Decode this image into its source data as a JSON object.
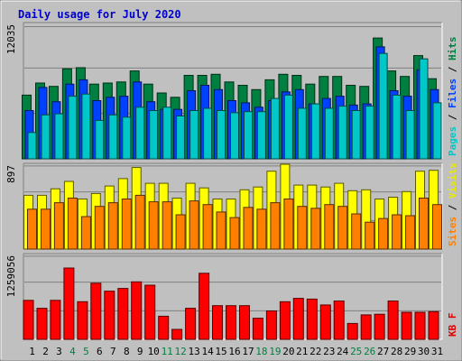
{
  "chart_data": {
    "type": "bar",
    "title": "Daily usage for July 2020",
    "categories": [
      "1",
      "2",
      "3",
      "4",
      "5",
      "6",
      "7",
      "8",
      "9",
      "10",
      "11",
      "12",
      "13",
      "14",
      "15",
      "16",
      "17",
      "18",
      "19",
      "20",
      "21",
      "22",
      "23",
      "24",
      "25",
      "26",
      "27",
      "28",
      "29",
      "30",
      "31"
    ],
    "weekend_days": [
      "4",
      "5",
      "11",
      "12",
      "18",
      "19",
      "25",
      "26"
    ],
    "panels": [
      {
        "id": "hits-files-pages",
        "ymax_label": "12035",
        "ymax": 12035,
        "axis_labels": [
          {
            "text": "Pages",
            "color": "#00c8c8"
          },
          {
            "text": " / ",
            "color": "#000000"
          },
          {
            "text": "Files",
            "color": "#0040ff"
          },
          {
            "text": " / ",
            "color": "#000000"
          },
          {
            "text": "Hits",
            "color": "#008040"
          }
        ],
        "series": [
          {
            "name": "Hits",
            "color": "#008040",
            "values": [
              5800,
              6900,
              6600,
              8200,
              8300,
              6800,
              6900,
              7000,
              8000,
              6800,
              6000,
              5600,
              7600,
              7600,
              7700,
              7000,
              6700,
              6300,
              7200,
              7700,
              7600,
              6800,
              7500,
              7500,
              6700,
              6600,
              11000,
              8000,
              7500,
              9400,
              7300
            ]
          },
          {
            "name": "Files",
            "color": "#0040ff",
            "values": [
              4400,
              6500,
              5200,
              6800,
              7200,
              5300,
              5600,
              5700,
              7000,
              5200,
              4500,
              4500,
              6200,
              6700,
              6300,
              5300,
              5100,
              4700,
              5300,
              6100,
              6300,
              5000,
              5500,
              5700,
              4900,
              5000,
              10200,
              6200,
              5700,
              8100,
              6300
            ]
          },
          {
            "name": "Pages",
            "color": "#00c8c8",
            "values": [
              2400,
              4000,
              4100,
              5700,
              5900,
              3500,
              4000,
              3800,
              4700,
              4400,
              4700,
              3900,
              4400,
              4600,
              4400,
              4200,
              4300,
              4300,
              5500,
              5800,
              4600,
              5000,
              4600,
              4800,
              4400,
              4800,
              9600,
              5800,
              4400,
              9100,
              5100
            ]
          }
        ]
      },
      {
        "id": "visits-sites",
        "ymax_label": "897",
        "ymax": 897,
        "axis_labels": [
          {
            "text": "Sites",
            "color": "#ff8000"
          },
          {
            "text": " / ",
            "color": "#000000"
          },
          {
            "text": "Visits",
            "color": "#e8e800"
          }
        ],
        "series": [
          {
            "name": "Visits",
            "color": "#ffff00",
            "values": [
              580,
              580,
              650,
              730,
              540,
              600,
              680,
              760,
              880,
              710,
              710,
              550,
              710,
              660,
              540,
              540,
              640,
              670,
              840,
              930,
              690,
              690,
              670,
              710,
              630,
              640,
              540,
              560,
              620,
              840,
              850
            ]
          },
          {
            "name": "Sites",
            "color": "#ff8000",
            "values": [
              430,
              430,
              500,
              550,
              350,
              460,
              500,
              540,
              580,
              510,
              510,
              370,
              520,
              480,
              400,
              340,
              450,
              430,
              500,
              540,
              460,
              440,
              480,
              460,
              380,
              290,
              330,
              370,
              360,
              550,
              480
            ]
          }
        ]
      },
      {
        "id": "kbytes",
        "ymax_label": "1259056",
        "ymax": 1259056,
        "axis_labels": [
          {
            "text": "KB F",
            "color": "#e00000"
          }
        ],
        "series": [
          {
            "name": "KB F",
            "color": "#ff0000",
            "values": [
              590000,
              470000,
              590000,
              1080000,
              570000,
              850000,
              730000,
              770000,
              870000,
              820000,
              350000,
              150000,
              470000,
              1000000,
              510000,
              510000,
              510000,
              320000,
              430000,
              570000,
              620000,
              610000,
              520000,
              580000,
              240000,
              370000,
              380000,
              580000,
              410000,
              410000,
              420000
            ]
          }
        ]
      }
    ]
  }
}
